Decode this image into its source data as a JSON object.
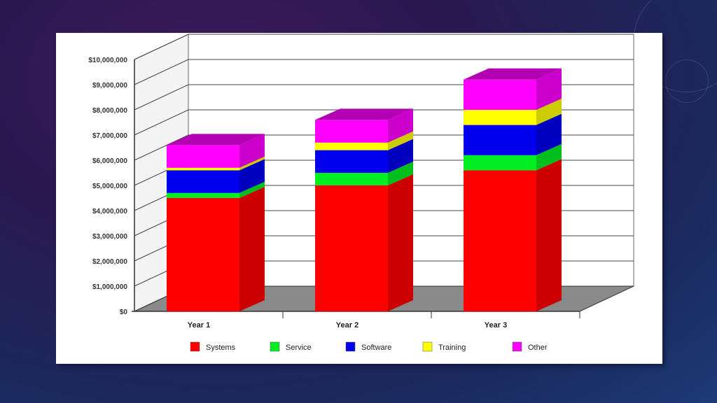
{
  "chart_data": {
    "type": "bar",
    "stacked": true,
    "three_d": true,
    "categories": [
      "Year 1",
      "Year 2",
      "Year 3"
    ],
    "series": [
      {
        "name": "Systems",
        "color": "#ff0000",
        "values": [
          4500000,
          5000000,
          5600000
        ]
      },
      {
        "name": "Service",
        "color": "#00ee22",
        "values": [
          200000,
          500000,
          600000
        ]
      },
      {
        "name": "Software",
        "color": "#0000ee",
        "values": [
          900000,
          900000,
          1200000
        ]
      },
      {
        "name": "Training",
        "color": "#ffff00",
        "values": [
          100000,
          300000,
          600000
        ]
      },
      {
        "name": "Other",
        "color": "#ff00ff",
        "values": [
          900000,
          900000,
          1200000
        ]
      }
    ],
    "yticks": [
      "$0",
      "$1,000,000",
      "$2,000,000",
      "$3,000,000",
      "$4,000,000",
      "$5,000,000",
      "$6,000,000",
      "$7,000,000",
      "$8,000,000",
      "$9,000,000",
      "$10,000,000"
    ],
    "ylim": [
      0,
      10000000
    ],
    "grid": true,
    "legend": "bottom"
  }
}
